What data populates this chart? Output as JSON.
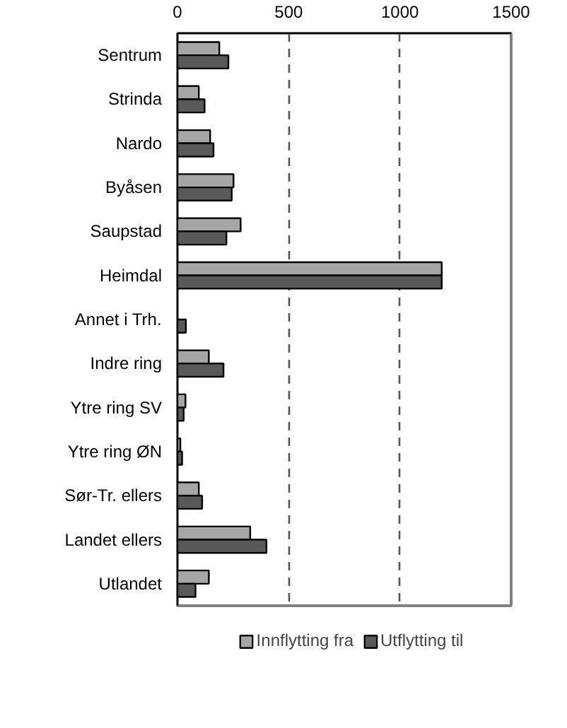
{
  "chart_data": {
    "type": "bar",
    "orientation": "horizontal",
    "categories": [
      "Sentrum",
      "Strinda",
      "Nardo",
      "Byåsen",
      "Saupstad",
      "Heimdal",
      "Annet i Trh.",
      "Indre ring",
      "Ytre ring SV",
      "Ytre ring ØN",
      "Sør-Tr. ellers",
      "Landet ellers",
      "Utlandet"
    ],
    "series": [
      {
        "name": "Innflytting fra",
        "color": "#a6a6a6",
        "values": [
          188,
          96,
          147,
          252,
          284,
          1188,
          null,
          141,
          36,
          13,
          96,
          327,
          141
        ]
      },
      {
        "name": "Utflytting til",
        "color": "#595959",
        "values": [
          229,
          122,
          162,
          244,
          220,
          1188,
          38,
          207,
          28,
          21,
          111,
          400,
          81
        ]
      }
    ],
    "xlim": [
      0,
      1500
    ],
    "xticks": [
      0,
      500,
      1000,
      1500
    ],
    "grid": "x",
    "line_style": "dashed",
    "legend": "bottom"
  }
}
